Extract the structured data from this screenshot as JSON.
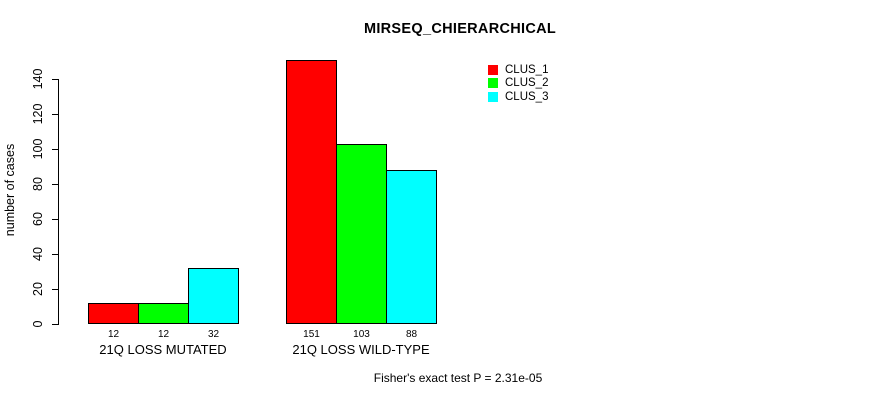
{
  "chart_data": {
    "type": "bar",
    "title": "MIRSEQ_CHIERARCHICAL",
    "xlabel": "",
    "ylabel": "number of cases",
    "categories": [
      "21Q LOSS MUTATED",
      "21Q LOSS WILD-TYPE"
    ],
    "series": [
      {
        "name": "CLUS_1",
        "color": "#FF0000",
        "values": [
          12,
          151
        ]
      },
      {
        "name": "CLUS_2",
        "color": "#00FF00",
        "values": [
          12,
          103
        ]
      },
      {
        "name": "CLUS_3",
        "color": "#00FFFF",
        "values": [
          32,
          88
        ]
      }
    ],
    "bar_value_labels": [
      [
        "12",
        "12",
        "32"
      ],
      [
        "151",
        "103",
        "88"
      ]
    ],
    "yticks": [
      0,
      20,
      40,
      60,
      80,
      100,
      120,
      140
    ],
    "ylim": [
      0,
      140
    ],
    "grid": false,
    "legend_position": "top-right",
    "annotation": "Fisher's exact test P = 2.31e-05"
  },
  "colors": {
    "axis": "#000000",
    "background": "#FFFFFF",
    "bar_border": "#000000"
  }
}
